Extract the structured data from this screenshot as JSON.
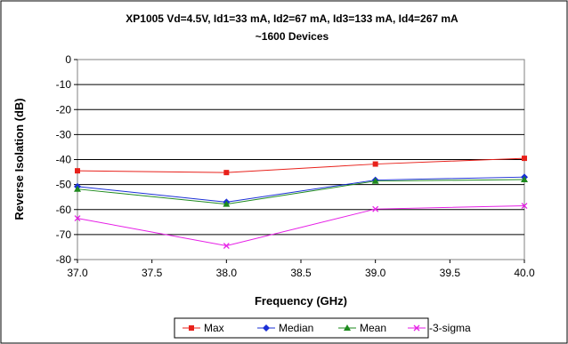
{
  "chart_data": {
    "type": "line",
    "title": "XP1005 Vd=4.5V, Id1=33 mA, Id2=67 mA, Id3=133 mA, Id4=267 mA",
    "subtitle": "~1600 Devices",
    "xlabel": "Frequency (GHz)",
    "ylabel": "Reverse Isolation (dB)",
    "xlim": [
      37.0,
      40.0
    ],
    "ylim": [
      -80,
      0
    ],
    "xticks": [
      "37.0",
      "37.5",
      "38.0",
      "38.5",
      "39.0",
      "39.5",
      "40.0"
    ],
    "yticks": [
      "0",
      "-10",
      "-20",
      "-30",
      "-40",
      "-50",
      "-60",
      "-70",
      "-80"
    ],
    "grid": "horizontal",
    "legend": "bottom",
    "x": [
      37.0,
      38.0,
      39.0,
      40.0
    ],
    "series": [
      {
        "name": "Max",
        "color": "#e8211b",
        "marker": "square",
        "values": [
          -44.5,
          -45.2,
          -41.8,
          -39.5
        ]
      },
      {
        "name": "Median",
        "color": "#1a2fd6",
        "marker": "diamond",
        "values": [
          -50.8,
          -57.0,
          -48.2,
          -47.0
        ]
      },
      {
        "name": "Mean",
        "color": "#1e8a1e",
        "marker": "triangle",
        "values": [
          -51.8,
          -57.8,
          -48.6,
          -48.0
        ]
      },
      {
        "name": "-3-sigma",
        "color": "#e61ee6",
        "marker": "x",
        "values": [
          -63.5,
          -74.5,
          -59.8,
          -58.5
        ]
      }
    ]
  }
}
